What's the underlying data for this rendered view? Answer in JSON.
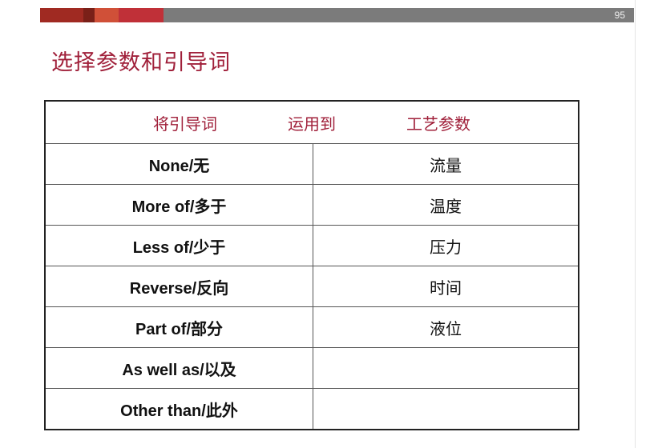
{
  "slide": {
    "page_number": "95",
    "title": "选择参数和引导词",
    "accent_colors": [
      "#a02a22",
      "#7a2018",
      "#d05038",
      "#c03038",
      "#7b7b7b"
    ],
    "header": [
      "将引导词",
      "运用到",
      "工艺参数"
    ],
    "rows": [
      {
        "guide": "None/无",
        "param": "流量"
      },
      {
        "guide": "More of/多于",
        "param": "温度"
      },
      {
        "guide": "Less of/少于",
        "param": "压力"
      },
      {
        "guide": "Reverse/反向",
        "param": "时间"
      },
      {
        "guide": "Part of/部分",
        "param": "液位"
      },
      {
        "guide": "As well as/以及",
        "param": ""
      },
      {
        "guide": "Other than/此外",
        "param": ""
      }
    ]
  }
}
